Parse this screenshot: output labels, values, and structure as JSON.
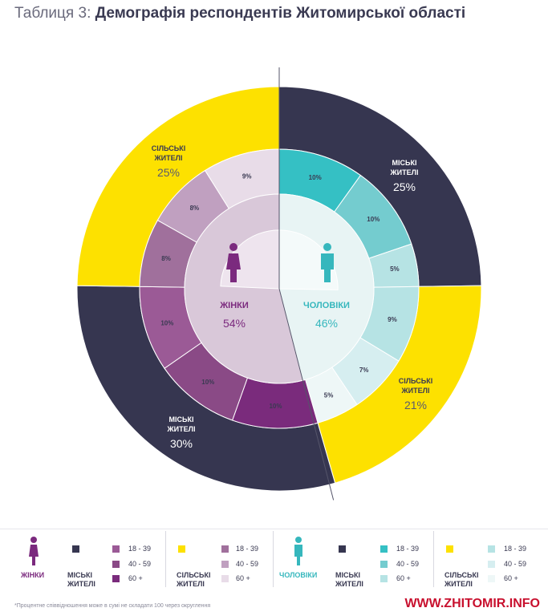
{
  "title": {
    "prefix": "Таблиця 3:",
    "main": "Демографія респондентів Житомирської області"
  },
  "colors": {
    "navy": "#363650",
    "yellow": "#fde100",
    "women_18_39": "#a0709c",
    "women_40_59": "#c0a0c0",
    "women_60": "#e8dce8",
    "women_city_18_39": "#9b5a96",
    "women_city_40_59": "#8a4a86",
    "women_city_60": "#7a2b7c",
    "men_18_39": "#35c0c4",
    "men_40_59": "#74cccf",
    "men_60": "#b6e3e4",
    "women_center": "#d9c8d9",
    "men_center": "#e8f4f4",
    "women_icon": "#7b2a7e",
    "men_icon": "#36b7bd"
  },
  "chart_data": {
    "type": "pie",
    "rings": {
      "outer": [
        {
          "label": "МІСЬКІ ЖИТЕЛІ",
          "gender": "ЧОЛОВІКИ",
          "value": 25
        },
        {
          "label": "СІЛЬСЬКІ ЖИТЕЛІ",
          "gender": "ЧОЛОВІКИ",
          "value": 21
        },
        {
          "label": "МІСЬКІ ЖИТЕЛІ",
          "gender": "ЖІНКИ",
          "value": 30
        },
        {
          "label": "СІЛЬСЬКІ ЖИТЕЛІ",
          "gender": "ЖІНКИ",
          "value": 25
        }
      ],
      "middle": [
        {
          "group": "ЧОЛОВІКИ МІСЬКІ",
          "age": "18 - 39",
          "value": 10
        },
        {
          "group": "ЧОЛОВІКИ МІСЬКІ",
          "age": "40 - 59",
          "value": 10
        },
        {
          "group": "ЧОЛОВІКИ МІСЬКІ",
          "age": "60 +",
          "value": 5
        },
        {
          "group": "ЧОЛОВІКИ СІЛЬСЬКІ",
          "age": "18 - 39",
          "value": 9
        },
        {
          "group": "ЧОЛОВІКИ СІЛЬСЬКІ",
          "age": "40 - 59",
          "value": 7
        },
        {
          "group": "ЧОЛОВІКИ СІЛЬСЬКІ",
          "age": "60 +",
          "value": 5
        },
        {
          "group": "ЖІНКИ МІСЬКІ",
          "age": "60 +",
          "value": 10
        },
        {
          "group": "ЖІНКИ МІСЬКІ",
          "age": "40 - 59",
          "value": 10
        },
        {
          "group": "ЖІНКИ МІСЬКІ",
          "age": "18 - 39",
          "value": 10
        },
        {
          "group": "ЖІНКИ СІЛЬСЬКІ",
          "age": "18 - 39",
          "value": 8
        },
        {
          "group": "ЖІНКИ СІЛЬСЬКІ",
          "age": "40 - 59",
          "value": 8
        },
        {
          "group": "ЖІНКИ СІЛЬСЬКІ",
          "age": "60 +",
          "value": 9
        }
      ],
      "inner": [
        {
          "label": "ЧОЛОВІКИ",
          "value": 46
        },
        {
          "label": "ЖІНКИ",
          "value": 54
        }
      ]
    }
  },
  "labels": {
    "men_city": "МІСЬКІ ЖИТЕЛІ",
    "men_city_pct": "25%",
    "men_rural": "СІЛЬСЬКІ ЖИТЕЛІ",
    "men_rural_pct": "21%",
    "women_city": "МІСЬКІ ЖИТЕЛІ",
    "women_city_pct": "30%",
    "women_rural": "СІЛЬСЬКІ ЖИТЕЛІ",
    "women_rural_pct": "25%",
    "women": "ЖІНКИ",
    "women_pct": "54%",
    "men": "ЧОЛОВІКИ",
    "men_pct": "46%"
  },
  "legend": {
    "women": "ЖІНКИ",
    "men": "ЧОЛОВІКИ",
    "city": "МІСЬКІ ЖИТЕЛІ",
    "rural": "СІЛЬСЬКІ ЖИТЕЛІ",
    "ages": [
      "18 - 39",
      "40 - 59",
      "60 +"
    ]
  },
  "footnote": "*Процентне співвідношення може в сумі не складати 100 через округлення",
  "watermark": "WWW.ZHITOMIR.INFO"
}
